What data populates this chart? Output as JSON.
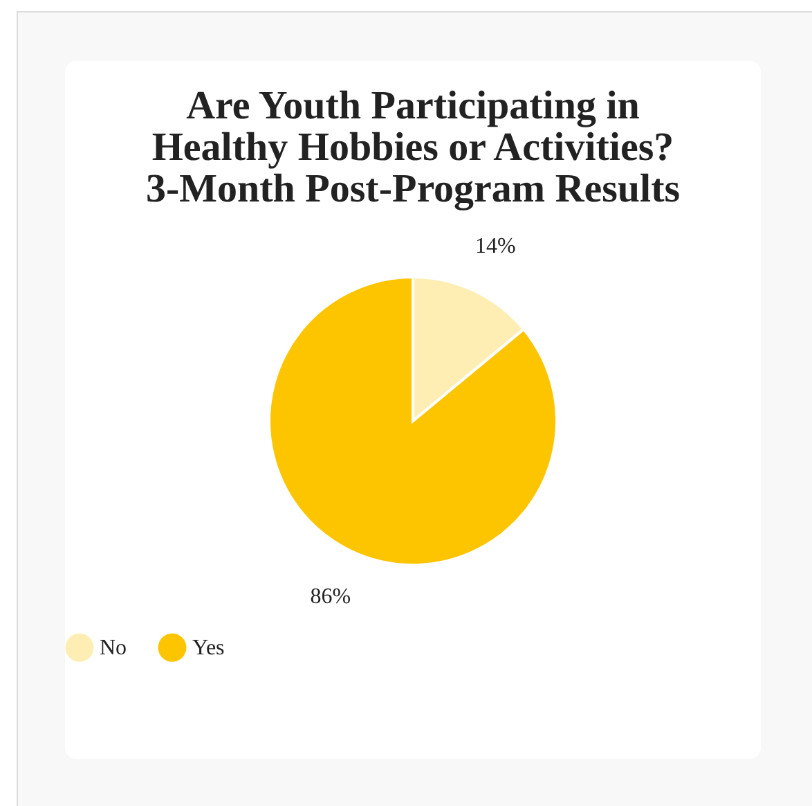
{
  "chart_data": {
    "type": "pie",
    "title": "Are Youth Participating in Healthy Hobbies or Activities? 3-Month Post-Program Results",
    "categories": [
      "No",
      "Yes"
    ],
    "values": [
      14,
      86
    ],
    "colors": [
      "#feeeb4",
      "#fdc500"
    ],
    "value_labels": [
      "14%",
      "86%"
    ],
    "legend": "bottom"
  }
}
